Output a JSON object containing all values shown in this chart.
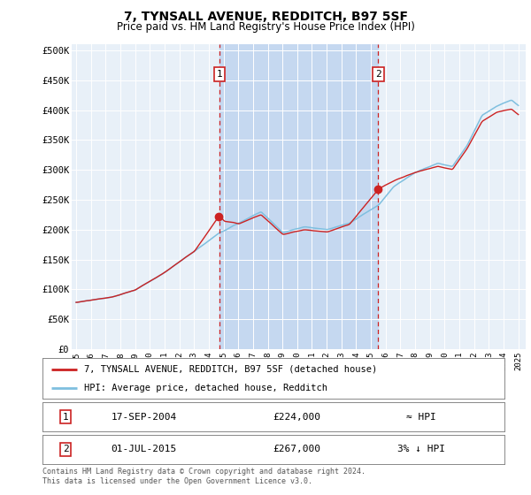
{
  "title": "7, TYNSALL AVENUE, REDDITCH, B97 5SF",
  "subtitle": "Price paid vs. HM Land Registry's House Price Index (HPI)",
  "ylabel_ticks": [
    "£0",
    "£50K",
    "£100K",
    "£150K",
    "£200K",
    "£250K",
    "£300K",
    "£350K",
    "£400K",
    "£450K",
    "£500K"
  ],
  "ytick_values": [
    0,
    50000,
    100000,
    150000,
    200000,
    250000,
    300000,
    350000,
    400000,
    450000,
    500000
  ],
  "ylim": [
    0,
    510000
  ],
  "plot_bg": "#e8f0f8",
  "shade_color": "#c5d8f0",
  "hpi_color": "#7fbfdf",
  "price_color": "#cc2222",
  "marker1_x": 2004.708,
  "marker2_x": 2015.5,
  "marker1_price": 224000,
  "marker2_price": 267000,
  "legend_line1": "7, TYNSALL AVENUE, REDDITCH, B97 5SF (detached house)",
  "legend_line2": "HPI: Average price, detached house, Redditch",
  "table_row1_num": "1",
  "table_row1_date": "17-SEP-2004",
  "table_row1_price": "£224,000",
  "table_row1_hpi": "≈ HPI",
  "table_row2_num": "2",
  "table_row2_date": "01-JUL-2015",
  "table_row2_price": "£267,000",
  "table_row2_hpi": "3% ↓ HPI",
  "footer": "Contains HM Land Registry data © Crown copyright and database right 2024.\nThis data is licensed under the Open Government Licence v3.0.",
  "xmin": 1994.7,
  "xmax": 2025.5
}
